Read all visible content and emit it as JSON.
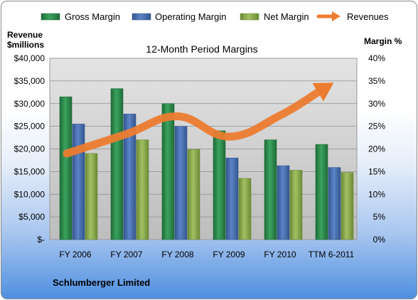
{
  "chart_data": {
    "type": "bar",
    "title": "12-Month Period Margins",
    "categories": [
      "FY 2006",
      "FY 2007",
      "FY 2008",
      "FY 2009",
      "FY 2010",
      "TTM 6-2011"
    ],
    "series": [
      {
        "name": "Gross Margin",
        "axis": "right",
        "color": "#2f8f4e",
        "values": [
          31.5,
          33.3,
          30.0,
          24.0,
          22.0,
          21.0
        ]
      },
      {
        "name": "Operating Margin",
        "axis": "right",
        "color": "#4a72b8",
        "values": [
          25.5,
          27.7,
          25.0,
          18.0,
          16.3,
          15.9
        ]
      },
      {
        "name": "Net Margin",
        "axis": "right",
        "color": "#8fae50",
        "values": [
          19.0,
          22.0,
          19.9,
          13.5,
          15.3,
          14.8
        ]
      },
      {
        "name": "Revenues",
        "axis": "left",
        "type": "line",
        "color": "#ec7c30",
        "values": [
          19000,
          23300,
          27200,
          22700,
          27400,
          34300
        ]
      }
    ],
    "left_axis": {
      "label_lines": [
        "Revenue",
        "$millions"
      ],
      "ylim": [
        0,
        40000
      ],
      "ticks": [
        "$-",
        "$5,000",
        "$10,000",
        "$15,000",
        "$20,000",
        "$25,000",
        "$30,000",
        "$35,000",
        "$40,000"
      ]
    },
    "right_axis": {
      "label": "Margin %",
      "ylim": [
        0,
        40
      ],
      "ticks": [
        "0%",
        "5%",
        "10%",
        "15%",
        "20%",
        "25%",
        "30%",
        "35%",
        "40%"
      ]
    },
    "legend_position": "top",
    "grid": true,
    "footer": "Schlumberger Limited"
  }
}
